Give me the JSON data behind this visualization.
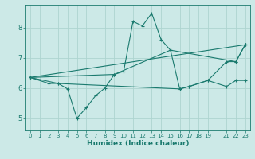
{
  "xlabel": "Humidex (Indice chaleur)",
  "bg_color": "#cce9e7",
  "line_color": "#1a7a6e",
  "grid_color": "#aed4d0",
  "xlim": [
    -0.5,
    23.5
  ],
  "ylim": [
    4.6,
    8.75
  ],
  "xticks": [
    0,
    1,
    2,
    3,
    4,
    5,
    6,
    7,
    8,
    9,
    10,
    11,
    12,
    13,
    14,
    15,
    16,
    17,
    18,
    19,
    21,
    22,
    23
  ],
  "yticks": [
    5,
    6,
    7,
    8
  ],
  "lines": [
    {
      "x": [
        0,
        2,
        3,
        4,
        5,
        6,
        7,
        8,
        9,
        10,
        11,
        12,
        13,
        14,
        15,
        16,
        17,
        19,
        21,
        22,
        23
      ],
      "y": [
        6.35,
        6.15,
        6.15,
        5.97,
        5.0,
        5.35,
        5.75,
        6.0,
        6.45,
        6.55,
        8.2,
        8.05,
        8.47,
        7.6,
        7.25,
        5.97,
        6.05,
        6.25,
        6.87,
        6.87,
        7.43
      ]
    },
    {
      "x": [
        0,
        23
      ],
      "y": [
        6.35,
        7.43
      ]
    },
    {
      "x": [
        0,
        3,
        16,
        17,
        19,
        21,
        22,
        23
      ],
      "y": [
        6.35,
        6.15,
        5.97,
        6.05,
        6.25,
        6.05,
        6.25,
        6.25
      ]
    },
    {
      "x": [
        0,
        9,
        15,
        22,
        23
      ],
      "y": [
        6.35,
        6.45,
        7.25,
        6.87,
        7.43
      ]
    }
  ]
}
